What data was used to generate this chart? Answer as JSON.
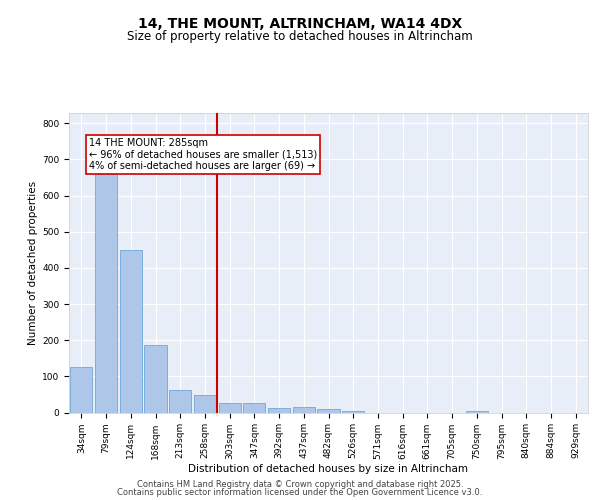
{
  "title1": "14, THE MOUNT, ALTRINCHAM, WA14 4DX",
  "title2": "Size of property relative to detached houses in Altrincham",
  "xlabel": "Distribution of detached houses by size in Altrincham",
  "ylabel": "Number of detached properties",
  "categories": [
    "34sqm",
    "79sqm",
    "124sqm",
    "168sqm",
    "213sqm",
    "258sqm",
    "303sqm",
    "347sqm",
    "392sqm",
    "437sqm",
    "482sqm",
    "526sqm",
    "571sqm",
    "616sqm",
    "661sqm",
    "705sqm",
    "750sqm",
    "795sqm",
    "840sqm",
    "884sqm",
    "929sqm"
  ],
  "values": [
    126,
    660,
    450,
    188,
    63,
    49,
    27,
    26,
    12,
    14,
    10,
    4,
    0,
    0,
    0,
    0,
    4,
    0,
    0,
    0,
    0
  ],
  "bar_color": "#aec6e8",
  "bar_edge_color": "#5a9fd4",
  "background_color": "#e8eef8",
  "grid_color": "#ffffff",
  "vline_x": 5.5,
  "vline_color": "#cc0000",
  "annotation_text": "14 THE MOUNT: 285sqm\n← 96% of detached houses are smaller (1,513)\n4% of semi-detached houses are larger (69) →",
  "annotation_box_color": "#cc0000",
  "ylim": [
    0,
    830
  ],
  "yticks": [
    0,
    100,
    200,
    300,
    400,
    500,
    600,
    700,
    800
  ],
  "footer1": "Contains HM Land Registry data © Crown copyright and database right 2025.",
  "footer2": "Contains public sector information licensed under the Open Government Licence v3.0.",
  "title_fontsize": 10,
  "subtitle_fontsize": 8.5,
  "axis_label_fontsize": 7.5,
  "tick_fontsize": 6.5,
  "annotation_fontsize": 7,
  "footer_fontsize": 6
}
